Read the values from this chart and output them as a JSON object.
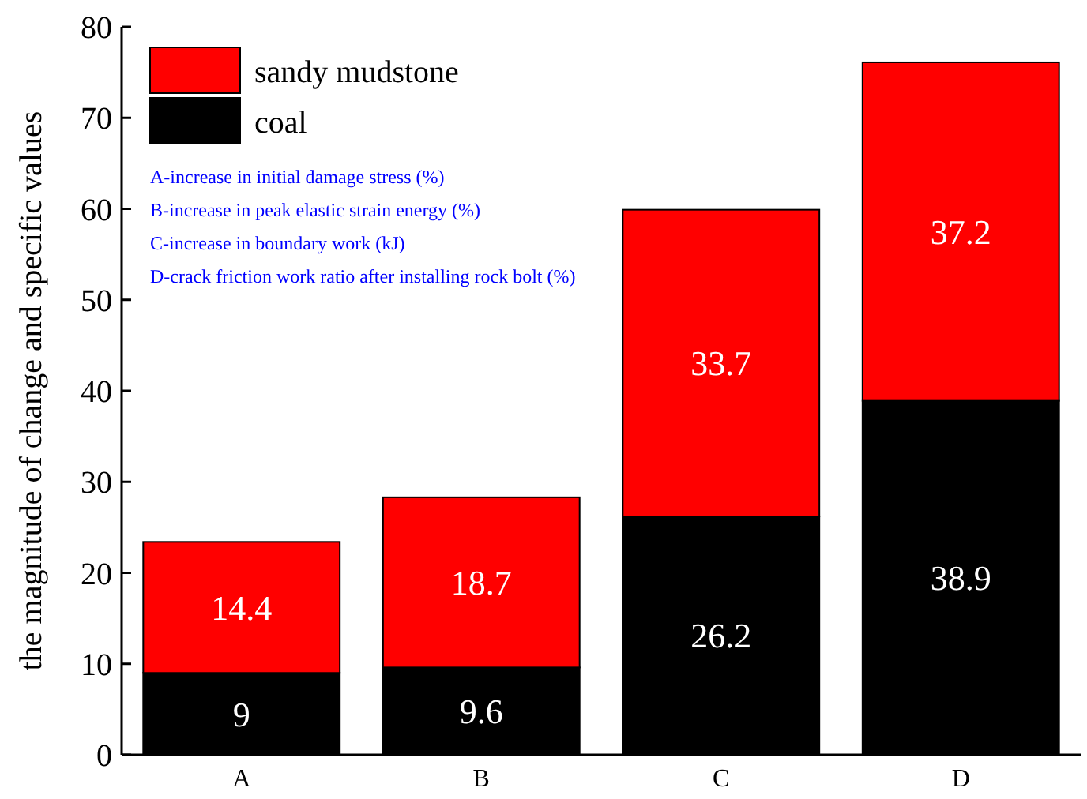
{
  "chart_data": {
    "type": "bar",
    "stacked": true,
    "ylabel": "the magnitude of change and specific values",
    "categories": [
      "A",
      "B",
      "C",
      "D"
    ],
    "series": [
      {
        "name": "coal",
        "color": "#000000",
        "values": [
          9,
          9.6,
          26.2,
          38.9
        ]
      },
      {
        "name": "sandy mudstone",
        "color": "#ff0000",
        "values": [
          14.4,
          18.7,
          33.7,
          37.2
        ]
      }
    ],
    "ylim": [
      0,
      80
    ],
    "yticks": [
      0,
      10,
      20,
      30,
      40,
      50,
      60,
      70,
      80
    ],
    "data_labels": true,
    "legend": "top left",
    "grid": false,
    "annotations": [
      "A-increase in initial damage stress (%)",
      "B-increase in peak elastic strain energy (%)",
      "C-increase in boundary work (kJ)",
      "D-crack friction work ratio after installing rock bolt (%)"
    ]
  }
}
